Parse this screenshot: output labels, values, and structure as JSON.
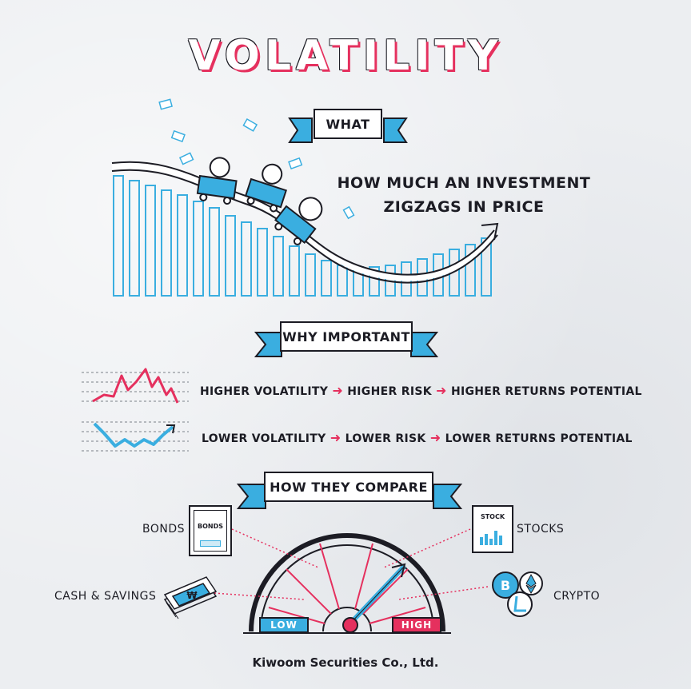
{
  "title": "VOLATILITY",
  "what": {
    "banner": "WHAT",
    "line1": "HOW MUCH AN INVESTMENT",
    "line2": "ZIGZAGS IN PRICE"
  },
  "why": {
    "banner": "WHY IMPORTANT",
    "higher": {
      "volatility": "HIGHER VOLATILITY",
      "risk": "HIGHER RISK",
      "returns": "HIGHER RETURNS POTENTIAL"
    },
    "lower": {
      "volatility": "LOWER VOLATILITY",
      "risk": "LOWER RISK",
      "returns": "LOWER RETURNS POTENTIAL"
    }
  },
  "compare": {
    "banner": "HOW THEY COMPARE",
    "assets": {
      "bonds": "BONDS",
      "bonds_doc": "BONDS",
      "stocks": "STOCKS",
      "stocks_doc": "STOCK",
      "cash": "CASH & SAVINGS",
      "crypto": "CRYPTO"
    },
    "gauge": {
      "low": "LOW",
      "high": "HIGH"
    },
    "currency_symbol": "₩",
    "crypto_symbol": "B"
  },
  "footer": "Kiwoom Securities Co., Ltd.",
  "colors": {
    "accent_blue": "#3aaee0",
    "accent_pink": "#e5305e",
    "ink": "#1c1c24"
  }
}
